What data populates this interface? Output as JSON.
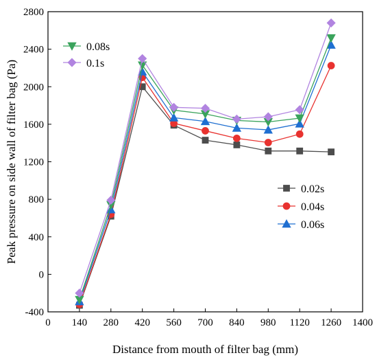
{
  "chart_data": {
    "type": "line",
    "xlabel": "Distance from mouth of filter bag (mm)",
    "ylabel": "Peak pressure on side wall of filter bag (Pa)",
    "xlim": [
      0,
      1400
    ],
    "ylim": [
      -400,
      2800
    ],
    "xticks": [
      0,
      140,
      280,
      420,
      560,
      700,
      840,
      980,
      1120,
      1260,
      1400
    ],
    "yticks": [
      -400,
      0,
      400,
      800,
      1200,
      1600,
      2000,
      2400,
      2800
    ],
    "x": [
      140,
      280,
      420,
      560,
      700,
      840,
      980,
      1120,
      1260
    ],
    "grid": false,
    "series": [
      {
        "name": "0.02s",
        "color": "#4d4d4d",
        "marker": "square",
        "values": [
          -330,
          620,
          2000,
          1590,
          1430,
          1380,
          1315,
          1315,
          1305
        ]
      },
      {
        "name": "0.04s",
        "color": "#e8322f",
        "marker": "circle",
        "values": [
          -320,
          640,
          2100,
          1610,
          1530,
          1450,
          1405,
          1495,
          2225
        ]
      },
      {
        "name": "0.06s",
        "color": "#1f6fd1",
        "marker": "triangle-up",
        "values": [
          -290,
          690,
          2160,
          1670,
          1630,
          1560,
          1540,
          1605,
          2445
        ]
      },
      {
        "name": "0.08s",
        "color": "#3aa35c",
        "marker": "triangle-down",
        "values": [
          -270,
          740,
          2230,
          1750,
          1710,
          1640,
          1625,
          1665,
          2520
        ]
      },
      {
        "name": "0.1s",
        "color": "#b184e0",
        "marker": "diamond",
        "values": [
          -200,
          790,
          2300,
          1780,
          1770,
          1655,
          1680,
          1755,
          2680
        ]
      }
    ],
    "legends": [
      {
        "placement": "top-left",
        "series": [
          "0.08s",
          "0.1s"
        ]
      },
      {
        "placement": "middle-right",
        "series": [
          "0.02s",
          "0.04s",
          "0.06s"
        ]
      }
    ]
  }
}
